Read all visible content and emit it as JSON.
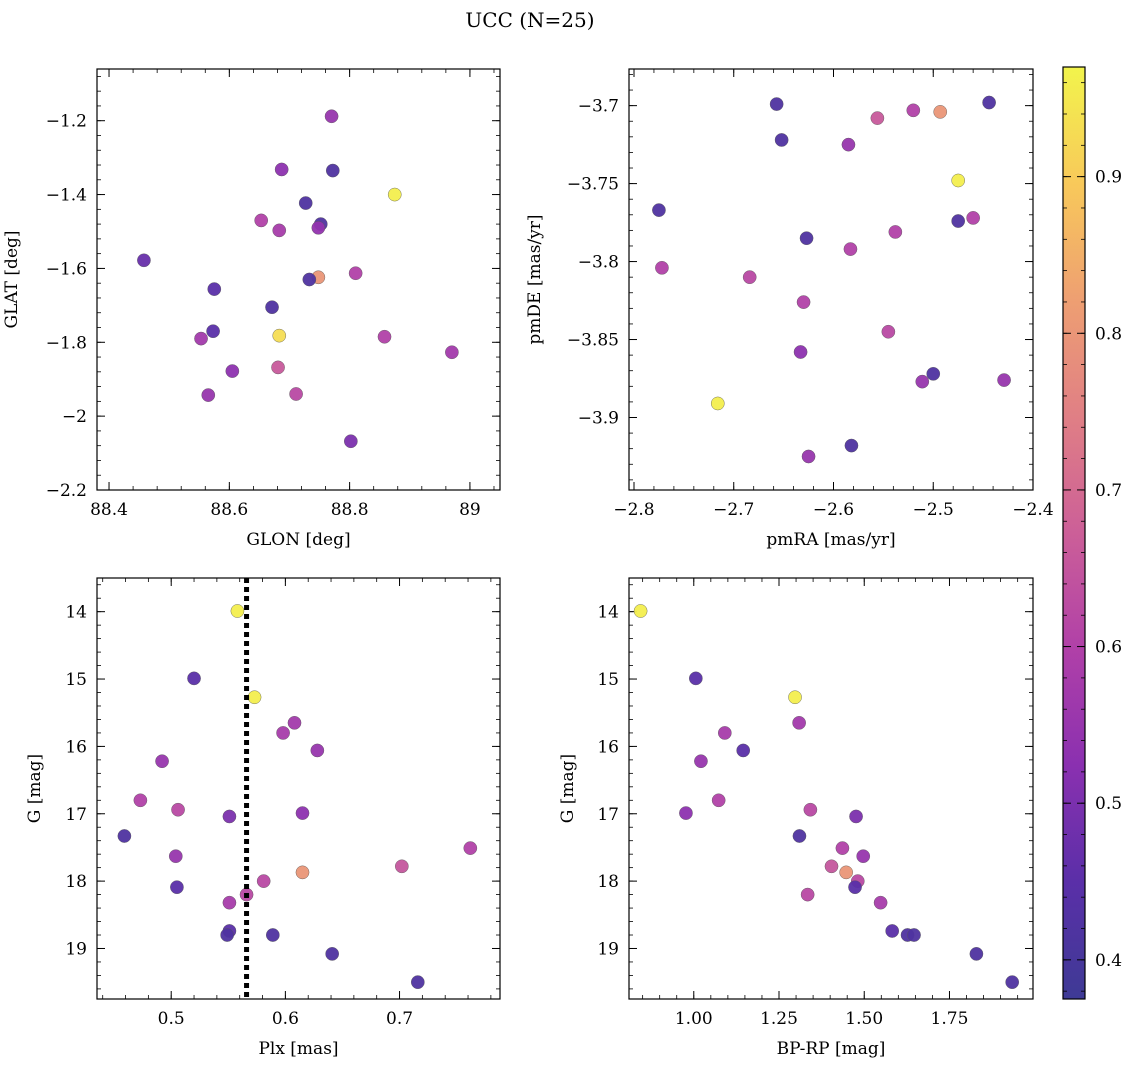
{
  "figure": {
    "title": "UCC (N=25)"
  },
  "colormap": {
    "name": "plasma",
    "stops": [
      "#3e3a95",
      "#5a2fa8",
      "#8a30b0",
      "#b040a8",
      "#cc5f98",
      "#e07f85",
      "#ee9f72",
      "#f8c95a",
      "#f2f44c"
    ]
  },
  "colorbar": {
    "min": 0.375,
    "max": 0.97,
    "ticks": [
      0.4,
      0.5,
      0.6,
      0.7,
      0.8,
      0.9
    ]
  },
  "chart_data": [
    {
      "type": "scatter",
      "panel": "glon-glat",
      "xlabel": "GLON [deg]",
      "ylabel": "GLAT [deg]",
      "xlim": [
        88.38,
        89.05
      ],
      "ylim": [
        -2.2,
        -1.06
      ],
      "xticks": [
        88.4,
        88.6,
        88.8,
        89.0
      ],
      "yticks": [
        -2.2,
        -2.0,
        -1.8,
        -1.6,
        -1.4,
        -1.2
      ],
      "points": [
        {
          "x": 88.77,
          "y": -1.188,
          "c": 0.55
        },
        {
          "x": 88.687,
          "y": -1.332,
          "c": 0.53
        },
        {
          "x": 88.772,
          "y": -1.335,
          "c": 0.42
        },
        {
          "x": 88.875,
          "y": -1.4,
          "c": 0.96
        },
        {
          "x": 88.727,
          "y": -1.423,
          "c": 0.42
        },
        {
          "x": 88.653,
          "y": -1.47,
          "c": 0.6
        },
        {
          "x": 88.752,
          "y": -1.48,
          "c": 0.42
        },
        {
          "x": 88.748,
          "y": -1.49,
          "c": 0.54
        },
        {
          "x": 88.683,
          "y": -1.497,
          "c": 0.58
        },
        {
          "x": 88.458,
          "y": -1.578,
          "c": 0.47
        },
        {
          "x": 88.81,
          "y": -1.613,
          "c": 0.6
        },
        {
          "x": 88.748,
          "y": -1.624,
          "c": 0.8
        },
        {
          "x": 88.733,
          "y": -1.63,
          "c": 0.42
        },
        {
          "x": 88.575,
          "y": -1.656,
          "c": 0.45
        },
        {
          "x": 88.671,
          "y": -1.705,
          "c": 0.42
        },
        {
          "x": 88.573,
          "y": -1.77,
          "c": 0.45
        },
        {
          "x": 88.683,
          "y": -1.782,
          "c": 0.93
        },
        {
          "x": 88.858,
          "y": -1.785,
          "c": 0.6
        },
        {
          "x": 88.553,
          "y": -1.79,
          "c": 0.57
        },
        {
          "x": 88.97,
          "y": -1.827,
          "c": 0.57
        },
        {
          "x": 88.681,
          "y": -1.868,
          "c": 0.66
        },
        {
          "x": 88.605,
          "y": -1.878,
          "c": 0.53
        },
        {
          "x": 88.565,
          "y": -1.943,
          "c": 0.55
        },
        {
          "x": 88.711,
          "y": -1.94,
          "c": 0.62
        },
        {
          "x": 88.802,
          "y": -2.068,
          "c": 0.5
        }
      ]
    },
    {
      "type": "scatter",
      "panel": "pm",
      "xlabel": "pmRA [mas/yr]",
      "ylabel": "pmDE [mas/yr]",
      "xlim": [
        -2.805,
        -2.4
      ],
      "ylim": [
        -3.9465,
        -3.6765
      ],
      "xticks": [
        -2.8,
        -2.7,
        -2.6,
        -2.5,
        -2.4
      ],
      "yticks": [
        -3.7,
        -3.75,
        -3.8,
        -3.85,
        -3.9
      ],
      "points": [
        {
          "x": -2.657,
          "y": -3.699,
          "c": 0.42
        },
        {
          "x": -2.444,
          "y": -3.698,
          "c": 0.42
        },
        {
          "x": -2.52,
          "y": -3.703,
          "c": 0.6
        },
        {
          "x": -2.493,
          "y": -3.704,
          "c": 0.8
        },
        {
          "x": -2.556,
          "y": -3.708,
          "c": 0.66
        },
        {
          "x": -2.652,
          "y": -3.722,
          "c": 0.42
        },
        {
          "x": -2.585,
          "y": -3.725,
          "c": 0.55
        },
        {
          "x": -2.475,
          "y": -3.748,
          "c": 0.96
        },
        {
          "x": -2.775,
          "y": -3.767,
          "c": 0.42
        },
        {
          "x": -2.46,
          "y": -3.772,
          "c": 0.6
        },
        {
          "x": -2.475,
          "y": -3.774,
          "c": 0.42
        },
        {
          "x": -2.538,
          "y": -3.781,
          "c": 0.6
        },
        {
          "x": -2.627,
          "y": -3.785,
          "c": 0.42
        },
        {
          "x": -2.583,
          "y": -3.792,
          "c": 0.6
        },
        {
          "x": -2.772,
          "y": -3.804,
          "c": 0.6
        },
        {
          "x": -2.684,
          "y": -3.81,
          "c": 0.62
        },
        {
          "x": -2.63,
          "y": -3.826,
          "c": 0.6
        },
        {
          "x": -2.545,
          "y": -3.845,
          "c": 0.62
        },
        {
          "x": -2.633,
          "y": -3.858,
          "c": 0.53
        },
        {
          "x": -2.5,
          "y": -3.872,
          "c": 0.42
        },
        {
          "x": -2.429,
          "y": -3.876,
          "c": 0.55
        },
        {
          "x": -2.511,
          "y": -3.877,
          "c": 0.55
        },
        {
          "x": -2.716,
          "y": -3.891,
          "c": 0.96
        },
        {
          "x": -2.582,
          "y": -3.918,
          "c": 0.42
        },
        {
          "x": -2.625,
          "y": -3.925,
          "c": 0.55
        }
      ]
    },
    {
      "type": "scatter",
      "panel": "plx-g",
      "xlabel": "Plx [mas]",
      "ylabel": "G [mag]",
      "xlim": [
        0.435,
        0.788
      ],
      "ylim": [
        19.75,
        13.5
      ],
      "invert_y": true,
      "xticks": [
        0.5,
        0.6,
        0.7
      ],
      "yticks": [
        14,
        15,
        16,
        17,
        18,
        19
      ],
      "vline": {
        "x": 0.566,
        "style": "dotted"
      },
      "points": [
        {
          "x": 0.558,
          "y": 13.99,
          "c": 0.96
        },
        {
          "x": 0.52,
          "y": 14.99,
          "c": 0.45
        },
        {
          "x": 0.573,
          "y": 15.27,
          "c": 0.96
        },
        {
          "x": 0.608,
          "y": 15.65,
          "c": 0.57
        },
        {
          "x": 0.598,
          "y": 15.8,
          "c": 0.58
        },
        {
          "x": 0.628,
          "y": 16.06,
          "c": 0.55
        },
        {
          "x": 0.492,
          "y": 16.22,
          "c": 0.55
        },
        {
          "x": 0.473,
          "y": 16.8,
          "c": 0.6
        },
        {
          "x": 0.506,
          "y": 16.94,
          "c": 0.62
        },
        {
          "x": 0.615,
          "y": 16.99,
          "c": 0.53
        },
        {
          "x": 0.551,
          "y": 17.04,
          "c": 0.5
        },
        {
          "x": 0.459,
          "y": 17.33,
          "c": 0.42
        },
        {
          "x": 0.762,
          "y": 17.51,
          "c": 0.6
        },
        {
          "x": 0.504,
          "y": 17.63,
          "c": 0.55
        },
        {
          "x": 0.702,
          "y": 17.78,
          "c": 0.65
        },
        {
          "x": 0.615,
          "y": 17.87,
          "c": 0.8
        },
        {
          "x": 0.581,
          "y": 18.0,
          "c": 0.62
        },
        {
          "x": 0.505,
          "y": 18.09,
          "c": 0.45
        },
        {
          "x": 0.566,
          "y": 18.2,
          "c": 0.62
        },
        {
          "x": 0.551,
          "y": 18.32,
          "c": 0.58
        },
        {
          "x": 0.551,
          "y": 18.74,
          "c": 0.45
        },
        {
          "x": 0.549,
          "y": 18.8,
          "c": 0.42
        },
        {
          "x": 0.589,
          "y": 18.8,
          "c": 0.42
        },
        {
          "x": 0.641,
          "y": 19.08,
          "c": 0.42
        },
        {
          "x": 0.716,
          "y": 19.5,
          "c": 0.42
        }
      ]
    },
    {
      "type": "scatter",
      "panel": "cmd",
      "xlabel": "BP-RP [mag]",
      "ylabel": "G [mag]",
      "xlim": [
        0.81,
        1.995
      ],
      "ylim": [
        19.75,
        13.5
      ],
      "invert_y": true,
      "xticks": [
        1.0,
        1.25,
        1.5,
        1.75
      ],
      "xticklabels": [
        "1.00",
        "1.25",
        "1.50",
        "1.75"
      ],
      "yticks": [
        14,
        15,
        16,
        17,
        18,
        19
      ],
      "points": [
        {
          "x": 0.844,
          "y": 13.99,
          "c": 0.96
        },
        {
          "x": 1.006,
          "y": 14.99,
          "c": 0.45
        },
        {
          "x": 1.297,
          "y": 15.27,
          "c": 0.96
        },
        {
          "x": 1.309,
          "y": 15.65,
          "c": 0.57
        },
        {
          "x": 1.091,
          "y": 15.8,
          "c": 0.58
        },
        {
          "x": 1.145,
          "y": 16.06,
          "c": 0.45
        },
        {
          "x": 1.021,
          "y": 16.22,
          "c": 0.55
        },
        {
          "x": 1.073,
          "y": 16.8,
          "c": 0.6
        },
        {
          "x": 1.342,
          "y": 16.94,
          "c": 0.62
        },
        {
          "x": 0.977,
          "y": 16.99,
          "c": 0.53
        },
        {
          "x": 1.476,
          "y": 17.04,
          "c": 0.5
        },
        {
          "x": 1.31,
          "y": 17.33,
          "c": 0.42
        },
        {
          "x": 1.436,
          "y": 17.51,
          "c": 0.6
        },
        {
          "x": 1.497,
          "y": 17.63,
          "c": 0.55
        },
        {
          "x": 1.404,
          "y": 17.78,
          "c": 0.65
        },
        {
          "x": 1.447,
          "y": 17.87,
          "c": 0.8
        },
        {
          "x": 1.481,
          "y": 18.0,
          "c": 0.62
        },
        {
          "x": 1.473,
          "y": 18.09,
          "c": 0.45
        },
        {
          "x": 1.334,
          "y": 18.2,
          "c": 0.62
        },
        {
          "x": 1.548,
          "y": 18.32,
          "c": 0.58
        },
        {
          "x": 1.582,
          "y": 18.74,
          "c": 0.45
        },
        {
          "x": 1.627,
          "y": 18.8,
          "c": 0.42
        },
        {
          "x": 1.646,
          "y": 18.8,
          "c": 0.42
        },
        {
          "x": 1.829,
          "y": 19.08,
          "c": 0.42
        },
        {
          "x": 1.934,
          "y": 19.5,
          "c": 0.42
        }
      ]
    }
  ]
}
